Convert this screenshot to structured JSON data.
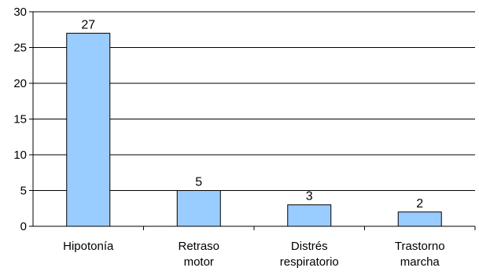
{
  "chart_data": {
    "type": "bar",
    "categories": [
      [
        "Hipotonía"
      ],
      [
        "Retraso",
        "motor"
      ],
      [
        "Distrés",
        "respiratorio"
      ],
      [
        "Trastorno",
        "marcha"
      ]
    ],
    "values": [
      27,
      5,
      3,
      2
    ],
    "data_labels": [
      "27",
      "5",
      "3",
      "2"
    ],
    "yticks": [
      0,
      5,
      10,
      15,
      20,
      25,
      30
    ],
    "ylim": [
      0,
      30
    ],
    "grid": true,
    "bar_color": "#99ccff",
    "bar_stroke": "#000000",
    "grid_color": "#000000"
  }
}
